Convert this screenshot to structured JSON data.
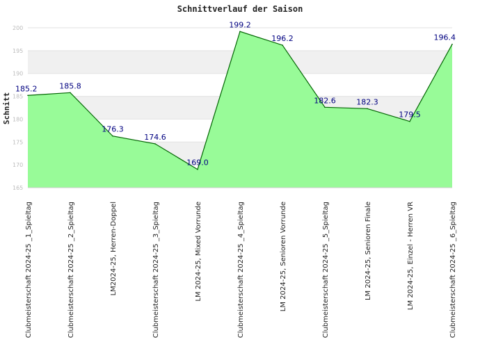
{
  "chart_data": {
    "type": "area",
    "title": "Schnittverlauf der Saison",
    "ylabel": "Schnitt",
    "xlabel": "",
    "ylim": [
      165,
      200
    ],
    "yticks": [
      "165",
      "170",
      "175",
      "180",
      "185",
      "190",
      "195",
      "200"
    ],
    "grid": true,
    "legend": "none",
    "colors": {
      "fill": "#98fb98",
      "line": "#006400",
      "label": "#000080",
      "band": "#f0f0f0"
    },
    "categories": [
      "Clubmeisterschaft 2024-25 _1_Spieltag",
      "Clubmeisterschaft 2024-25 _2_Spieltag",
      "LM2024-25, Herren-Doppel",
      "Clubmeisterschaft 2024-25 _3_Spieltag",
      "LM 2024-25, Mixed Vorrunde",
      "Clubmeisterschaft 2024-25 _4_Spieltag",
      "LM 2024-25, Senioren Vorrunde",
      "Clubmeisterschaft 2024-25 _5_Spieltag",
      "LM 2024-25, Senioren Finale",
      "LM 2024-25, Einzel - Herren VR",
      "Clubmeisterschaft 2024-25 _6_Spieltag"
    ],
    "values": [
      185.2,
      185.8,
      176.3,
      174.6,
      169.0,
      199.2,
      196.2,
      182.6,
      182.3,
      179.5,
      196.4
    ],
    "value_labels": [
      "185.2",
      "185.8",
      "176.3",
      "174.6",
      "169.0",
      "199.2",
      "196.2",
      "182.6",
      "182.3",
      "179.5",
      "196.4"
    ]
  }
}
